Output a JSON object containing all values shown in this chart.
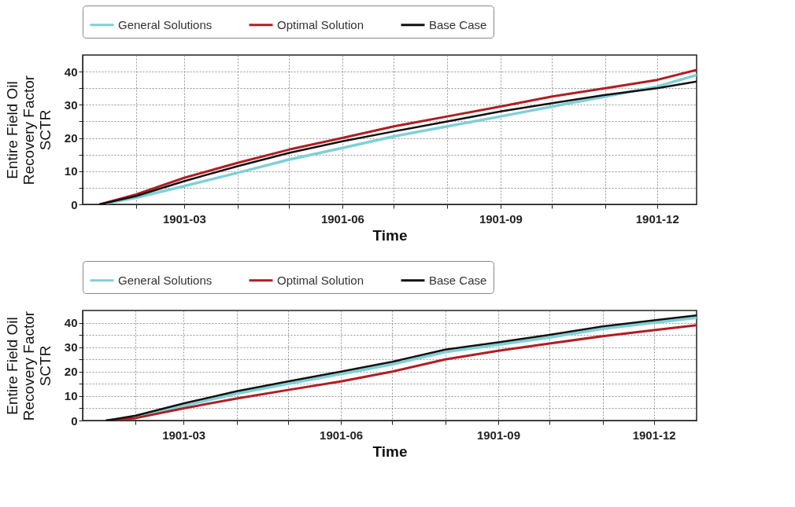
{
  "chart_data": [
    {
      "type": "line",
      "xlabel": "Time",
      "ylabel": "Entire  Field Oil\nRecovery Factor\nSCTR",
      "legend": "top",
      "grid": true,
      "x": [
        "1901-01-11",
        "1901-02-01",
        "1901-03-01",
        "1901-04-01",
        "1901-05-01",
        "1901-06-01",
        "1901-07-01",
        "1901-08-01",
        "1901-09-01",
        "1901-10-01",
        "1901-11-01",
        "1901-12-01",
        "1901-12-24"
      ],
      "xlim": [
        "1901-01-01",
        "1901-12-24"
      ],
      "xticks": [
        {
          "value": "1901-02",
          "label": null
        },
        "1901-03",
        {
          "value": "1901-04",
          "label": null
        },
        {
          "value": "1901-05",
          "label": null
        },
        "1901-06",
        {
          "value": "1901-07",
          "label": null
        },
        {
          "value": "1901-08",
          "label": null
        },
        "1901-09",
        {
          "value": "1901-10",
          "label": null
        },
        {
          "value": "1901-11",
          "label": null
        },
        "1901-12"
      ],
      "ylim": [
        0,
        45
      ],
      "yticks": [
        0,
        {
          "value": 5,
          "label": null
        },
        10,
        {
          "value": 15,
          "label": null
        },
        20,
        {
          "value": 25,
          "label": null
        },
        30,
        {
          "value": 35,
          "label": null
        },
        40
      ],
      "series": [
        {
          "name": "General Solutions",
          "color": "#7fd0d6",
          "values": [
            0,
            2,
            5.5,
            9.5,
            13.5,
            17,
            20.5,
            23.5,
            26.5,
            29.5,
            32.5,
            35.5,
            39
          ]
        },
        {
          "name": "Optimal Solution",
          "color": "#b01e23",
          "values": [
            0,
            3,
            8,
            12.5,
            16.5,
            20,
            23.5,
            26.5,
            29.5,
            32.5,
            35,
            37.5,
            40.5
          ]
        },
        {
          "name": "Base Case",
          "color": "#111111",
          "values": [
            0,
            2.5,
            7,
            11.5,
            15.5,
            19,
            22,
            25,
            28,
            30.5,
            33,
            35,
            37
          ]
        }
      ]
    },
    {
      "type": "line",
      "xlabel": "Time",
      "ylabel": "Entire  Field Oil\nRecovery Factor\nSCTR",
      "legend": "top",
      "grid": true,
      "x": [
        "1901-01-15",
        "1901-02-01",
        "1901-03-01",
        "1901-04-01",
        "1901-05-01",
        "1901-06-01",
        "1901-07-01",
        "1901-08-01",
        "1901-09-01",
        "1901-10-01",
        "1901-11-01",
        "1901-12-01",
        "1901-12-26"
      ],
      "xlim": [
        "1901-01-01",
        "1901-12-26"
      ],
      "xticks": [
        {
          "value": "1901-02",
          "label": null
        },
        "1901-03",
        {
          "value": "1901-04",
          "label": null
        },
        {
          "value": "1901-05",
          "label": null
        },
        "1901-06",
        {
          "value": "1901-07",
          "label": null
        },
        {
          "value": "1901-08",
          "label": null
        },
        "1901-09",
        {
          "value": "1901-10",
          "label": null
        },
        {
          "value": "1901-11",
          "label": null
        },
        "1901-12"
      ],
      "ylim": [
        0,
        45
      ],
      "yticks": [
        0,
        {
          "value": 5,
          "label": null
        },
        10,
        {
          "value": 15,
          "label": null
        },
        20,
        {
          "value": 25,
          "label": null
        },
        30,
        {
          "value": 35,
          "label": null
        },
        40
      ],
      "series": [
        {
          "name": "General Solutions",
          "color": "#7fd0d6",
          "values": [
            0,
            1.5,
            6,
            11,
            15,
            19,
            23,
            28,
            31,
            34,
            37.5,
            40,
            42
          ]
        },
        {
          "name": "Optimal Solution",
          "color": "#b01e23",
          "values": [
            0,
            1,
            5,
            9,
            12.5,
            16,
            20,
            25,
            28.5,
            31.5,
            34.5,
            37,
            39
          ]
        },
        {
          "name": "Base Case",
          "color": "#111111",
          "values": [
            0,
            2,
            7,
            12,
            16,
            20,
            24,
            29,
            32,
            35,
            38.5,
            41,
            43
          ]
        }
      ]
    }
  ]
}
